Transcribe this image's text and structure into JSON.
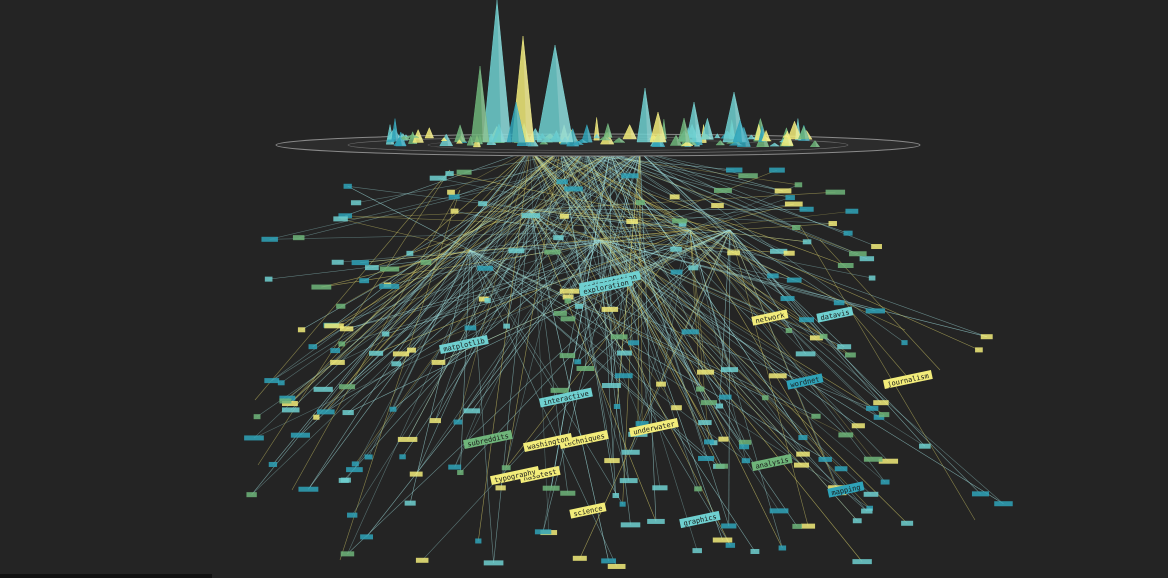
{
  "scene": {
    "background": "#242424",
    "platform_color": "#8a8a8a",
    "colors": {
      "yellow": "#f2ec7a",
      "teal": "#6fd0d0",
      "blue": "#2fa3b8",
      "green": "#6fb57a",
      "link": "#9fdede",
      "link_alt": "#d8cf6a"
    }
  },
  "labels": [
    {
      "text": "matplotlib",
      "color": "teal"
    },
    {
      "text": "techniques",
      "color": "yellow"
    },
    {
      "text": "subreddits",
      "color": "green"
    },
    {
      "text": "interactive",
      "color": "teal"
    },
    {
      "text": "washington",
      "color": "yellow"
    },
    {
      "text": "underwater",
      "color": "yellow"
    },
    {
      "text": "nasatest",
      "color": "yellow"
    },
    {
      "text": "sedimentation",
      "color": "teal"
    },
    {
      "text": "wordnet",
      "color": "blue"
    },
    {
      "text": "network",
      "color": "yellow"
    },
    {
      "text": "datavis",
      "color": "teal"
    },
    {
      "text": "science",
      "color": "yellow"
    },
    {
      "text": "analysis",
      "color": "green"
    },
    {
      "text": "typography",
      "color": "yellow"
    },
    {
      "text": "exploration",
      "color": "teal"
    },
    {
      "text": "journalism",
      "color": "yellow"
    },
    {
      "text": "mapping",
      "color": "blue"
    },
    {
      "text": "graphics",
      "color": "teal"
    }
  ]
}
